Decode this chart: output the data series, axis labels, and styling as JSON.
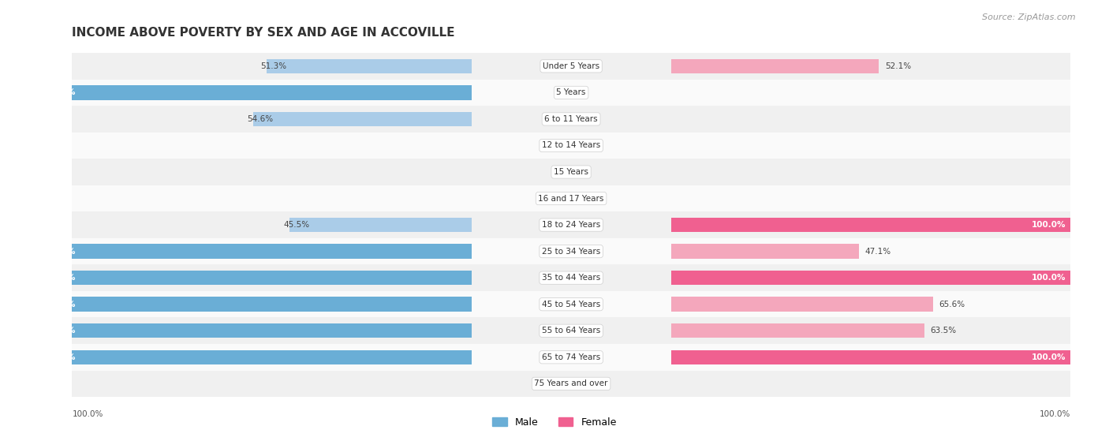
{
  "title": "INCOME ABOVE POVERTY BY SEX AND AGE IN ACCOVILLE",
  "source": "Source: ZipAtlas.com",
  "categories": [
    "Under 5 Years",
    "5 Years",
    "6 to 11 Years",
    "12 to 14 Years",
    "15 Years",
    "16 and 17 Years",
    "18 to 24 Years",
    "25 to 34 Years",
    "35 to 44 Years",
    "45 to 54 Years",
    "55 to 64 Years",
    "65 to 74 Years",
    "75 Years and over"
  ],
  "male_values": [
    51.3,
    100.0,
    54.6,
    0.0,
    0.0,
    0.0,
    45.5,
    100.0,
    100.0,
    100.0,
    100.0,
    100.0,
    0.0
  ],
  "female_values": [
    52.1,
    0.0,
    0.0,
    0.0,
    0.0,
    0.0,
    100.0,
    47.1,
    100.0,
    65.6,
    63.5,
    100.0,
    0.0
  ],
  "male_color_light": "#aacce8",
  "male_color_full": "#6aaed6",
  "female_color_light": "#f4a7bc",
  "female_color_full": "#f06090",
  "bg_odd": "#f0f0f0",
  "bg_even": "#fafafa",
  "legend_male": "Male",
  "legend_female": "Female",
  "title_fontsize": 11,
  "label_fontsize": 7.5,
  "cat_fontsize": 7.5,
  "source_fontsize": 8
}
